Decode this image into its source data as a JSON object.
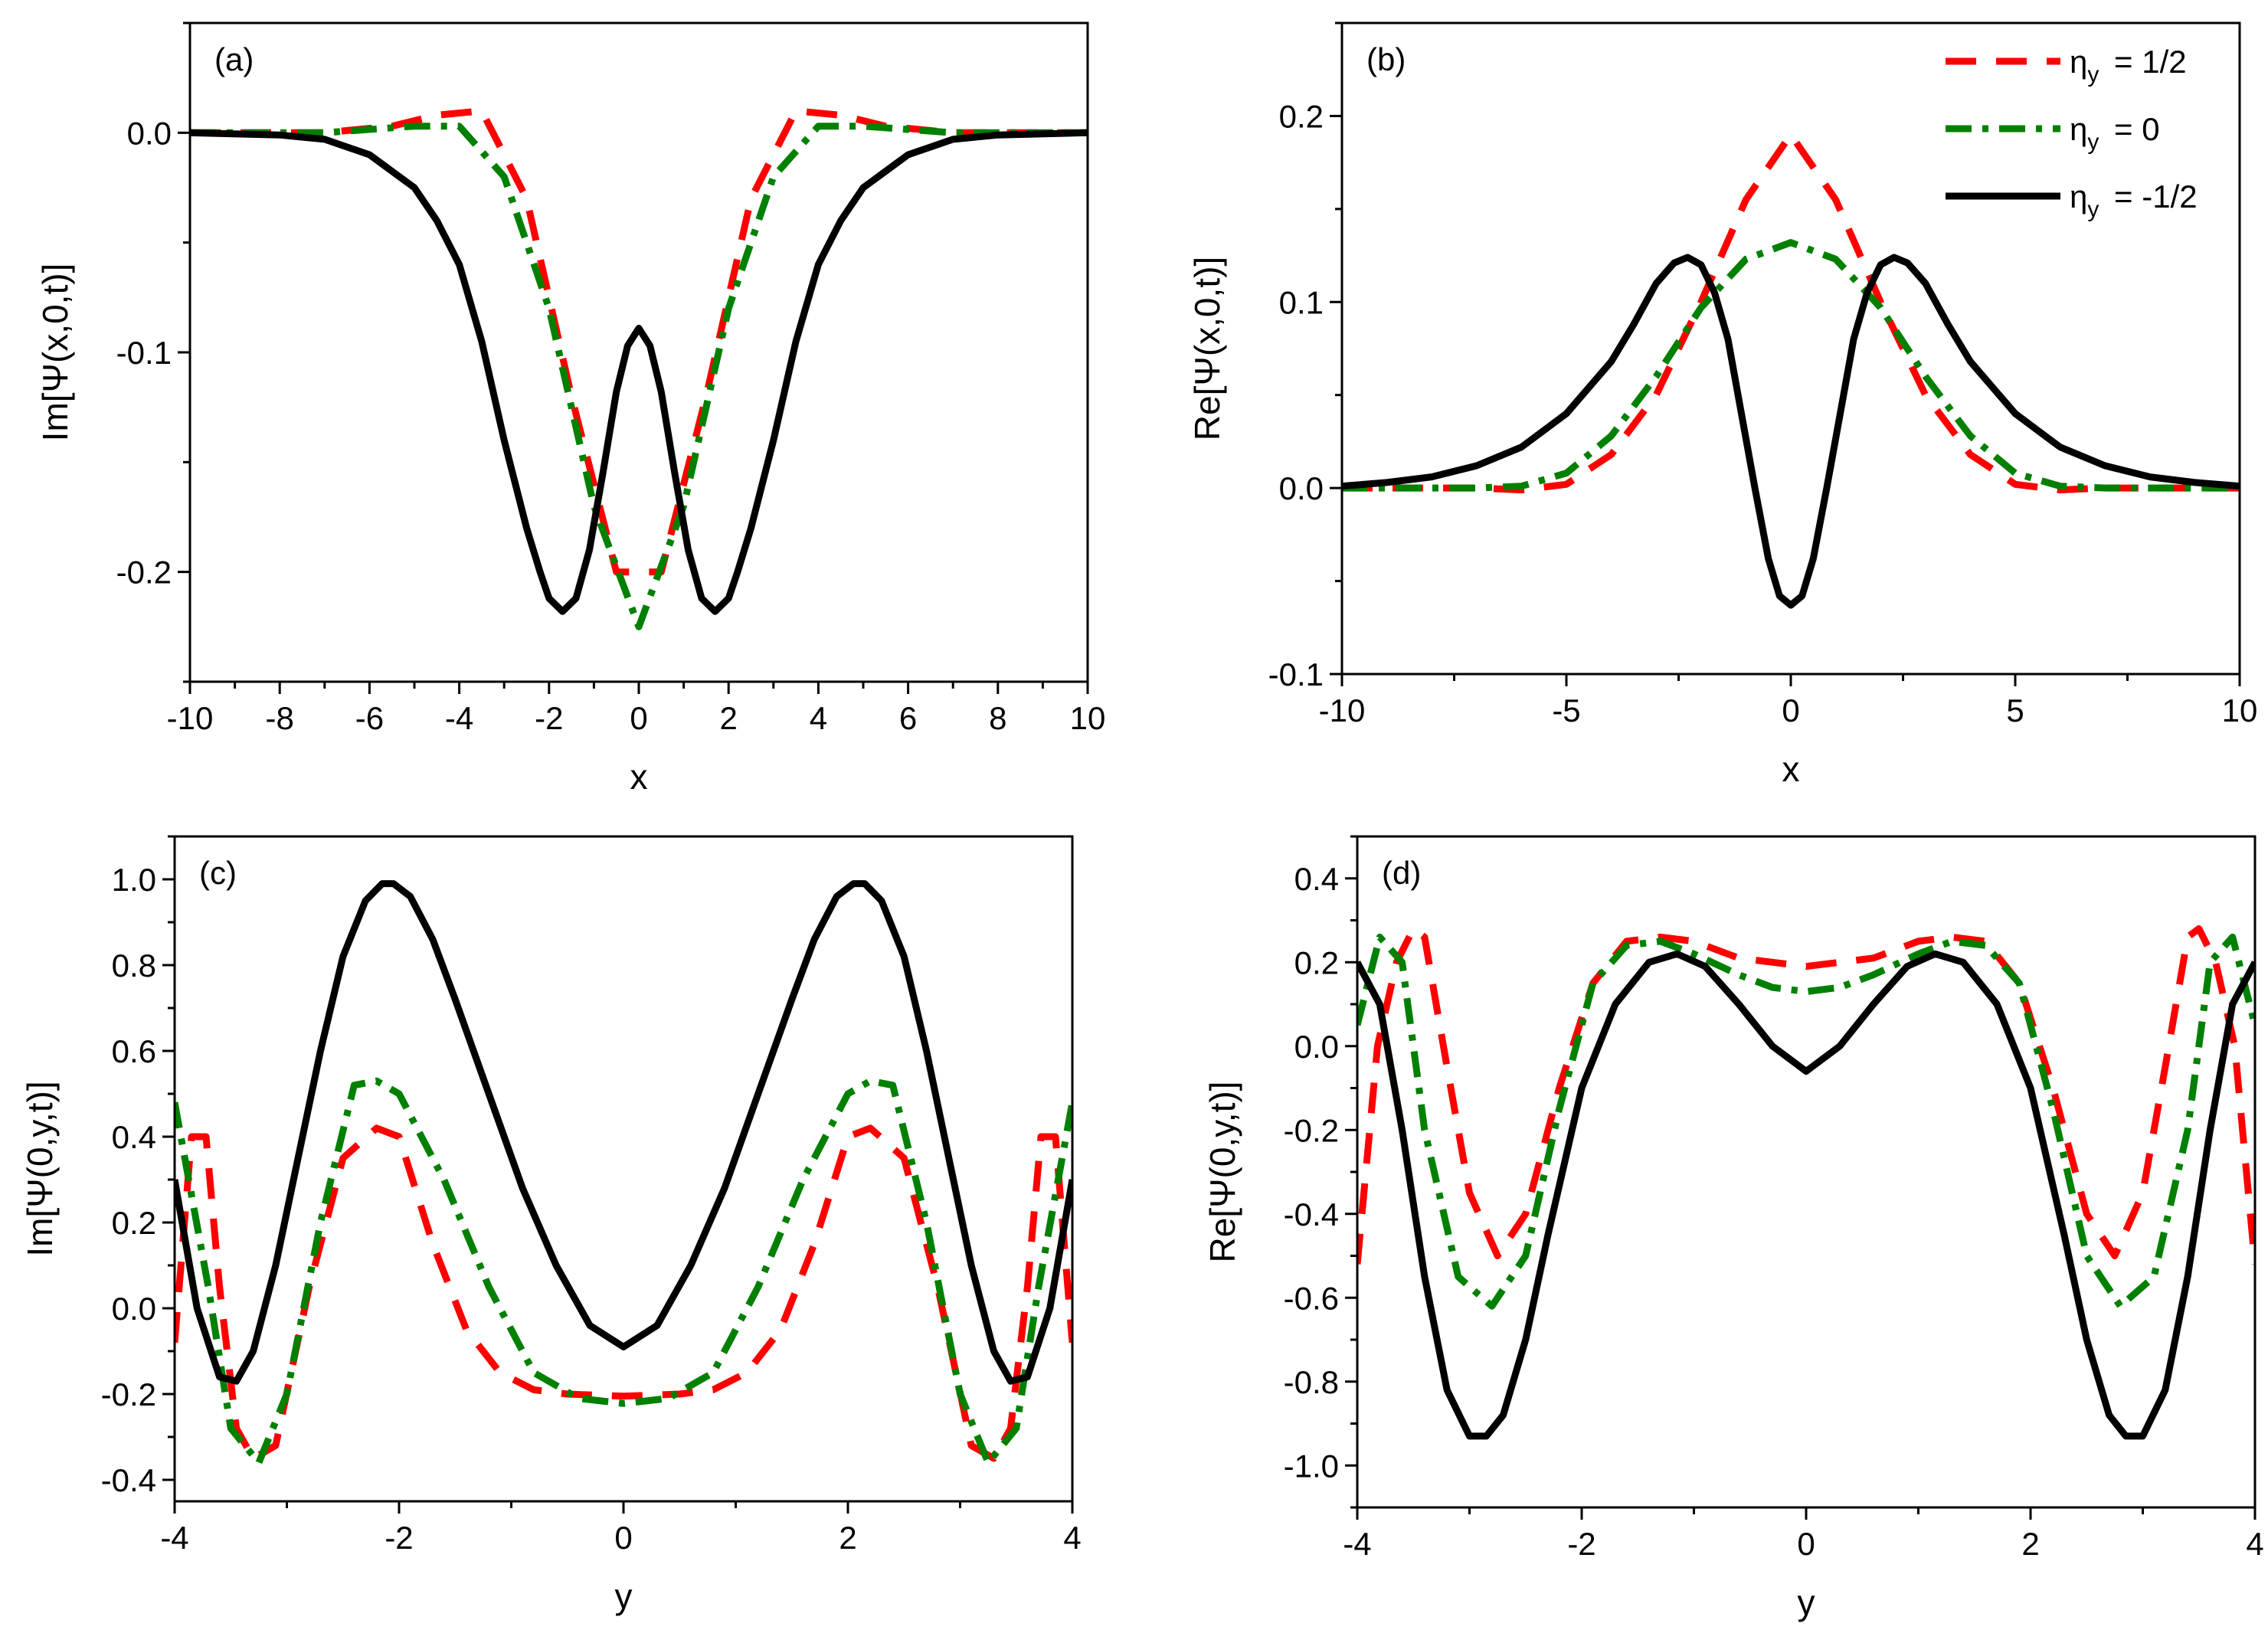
{
  "series_styles": [
    {
      "key": "a",
      "label": "ηy = 1/2",
      "name_html": "η",
      "sub": "y",
      "value": "= 1/2",
      "color": "#ff0000",
      "dash": "40 26"
    },
    {
      "key": "b",
      "label": "ηy = 0",
      "name_html": "η",
      "sub": "y",
      "value": "= 0",
      "color": "#008000",
      "dash": "34 14 8 14"
    },
    {
      "key": "c",
      "label": "ηy = -1/2",
      "name_html": "η",
      "sub": "y",
      "value": "= -1/2",
      "color": "#000000",
      "dash": ""
    }
  ],
  "chart_data": [
    {
      "type": "line",
      "panel": "(a)",
      "xlabel": "x",
      "ylabel": "Im[Ψ(x,0,t)]",
      "xlim": [
        -10,
        10
      ],
      "ylim": [
        -0.25,
        0.05
      ],
      "xticks": [
        -10,
        -8,
        -6,
        -4,
        -2,
        0,
        2,
        4,
        6,
        8,
        10
      ],
      "xtick_labels": [
        "-10",
        "-8",
        "-6",
        "-4",
        "-2",
        "0",
        "2",
        "4",
        "6",
        "8",
        "10"
      ],
      "yticks": [
        -0.2,
        -0.1,
        0.0
      ],
      "ytick_labels": [
        "-0.2",
        "-0.1",
        "0.0"
      ],
      "series": [
        {
          "name": "ηy = 1/2",
          "x": [
            -10,
            -7,
            -5.5,
            -4.5,
            -3.5,
            -2.5,
            -1.5,
            -0.5,
            0.5,
            1.5,
            2.5,
            3.5,
            4.5,
            5.5,
            7,
            10
          ],
          "y": [
            0,
            0,
            0.003,
            0.008,
            0.01,
            -0.03,
            -0.12,
            -0.2,
            -0.2,
            -0.12,
            -0.03,
            0.01,
            0.008,
            0.003,
            0,
            0
          ]
        },
        {
          "name": "ηy = 0",
          "x": [
            -10,
            -7,
            -5,
            -4,
            -3,
            -2,
            -1,
            0,
            1,
            2,
            3,
            4,
            5,
            7,
            10
          ],
          "y": [
            0,
            0,
            0.003,
            0.003,
            -0.02,
            -0.08,
            -0.17,
            -0.225,
            -0.17,
            -0.08,
            -0.02,
            0.003,
            0.003,
            0,
            0
          ]
        },
        {
          "name": "ηy = -1/2",
          "x": [
            -10,
            -8,
            -7,
            -6,
            -5,
            -4.5,
            -4,
            -3.5,
            -3,
            -2.5,
            -2.2,
            -2,
            -1.7,
            -1.4,
            -1.1,
            -0.8,
            -0.5,
            -0.25,
            0,
            0.25,
            0.5,
            0.8,
            1.1,
            1.4,
            1.7,
            2,
            2.2,
            2.5,
            3,
            3.5,
            4,
            4.5,
            5,
            6,
            7,
            8,
            10
          ],
          "y": [
            0,
            -0.001,
            -0.003,
            -0.01,
            -0.025,
            -0.04,
            -0.06,
            -0.095,
            -0.14,
            -0.18,
            -0.2,
            -0.212,
            -0.218,
            -0.212,
            -0.19,
            -0.155,
            -0.118,
            -0.097,
            -0.089,
            -0.097,
            -0.118,
            -0.155,
            -0.19,
            -0.212,
            -0.218,
            -0.212,
            -0.2,
            -0.18,
            -0.14,
            -0.095,
            -0.06,
            -0.04,
            -0.025,
            -0.01,
            -0.003,
            -0.001,
            0
          ]
        }
      ]
    },
    {
      "type": "line",
      "panel": "(b)",
      "xlabel": "x",
      "ylabel": "Re[Ψ(x,0,t)]",
      "xlim": [
        -10,
        10
      ],
      "ylim": [
        -0.1,
        0.25
      ],
      "xticks": [
        -10,
        -5,
        0,
        5,
        10
      ],
      "xtick_labels": [
        "-10",
        "-5",
        "0",
        "5",
        "10"
      ],
      "yticks": [
        -0.1,
        0.0,
        0.1,
        0.2
      ],
      "ytick_labels": [
        "-0.1",
        "0.0",
        "0.1",
        "0.2"
      ],
      "legend_position": "top-right",
      "series": [
        {
          "name": "ηy = 1/2",
          "x": [
            -10,
            -7,
            -6,
            -5,
            -4,
            -3,
            -2,
            -1,
            0,
            1,
            2,
            3,
            4,
            5,
            6,
            7,
            10
          ],
          "y": [
            0,
            0,
            -0.001,
            0.002,
            0.018,
            0.05,
            0.1,
            0.155,
            0.19,
            0.155,
            0.1,
            0.05,
            0.018,
            0.002,
            -0.001,
            0,
            0
          ]
        },
        {
          "name": "ηy = 0",
          "x": [
            -10,
            -7,
            -6,
            -5,
            -4,
            -3,
            -2,
            -1,
            0,
            1,
            2,
            3,
            4,
            5,
            6,
            7,
            10
          ],
          "y": [
            0,
            0,
            0.001,
            0.008,
            0.028,
            0.06,
            0.097,
            0.123,
            0.132,
            0.123,
            0.097,
            0.06,
            0.028,
            0.008,
            0.001,
            0,
            0
          ]
        },
        {
          "name": "ηy = -1/2",
          "x": [
            -10,
            -9,
            -8,
            -7,
            -6,
            -5,
            -4,
            -3.5,
            -3,
            -2.6,
            -2.3,
            -2,
            -1.7,
            -1.4,
            -1.1,
            -0.8,
            -0.5,
            -0.25,
            0,
            0.25,
            0.5,
            0.8,
            1.1,
            1.4,
            1.7,
            2,
            2.3,
            2.6,
            3,
            3.5,
            4,
            5,
            6,
            7,
            8,
            9,
            10
          ],
          "y": [
            0.001,
            0.003,
            0.006,
            0.012,
            0.022,
            0.04,
            0.068,
            0.088,
            0.11,
            0.121,
            0.124,
            0.12,
            0.105,
            0.08,
            0.04,
            0.0,
            -0.038,
            -0.058,
            -0.063,
            -0.058,
            -0.038,
            0.0,
            0.04,
            0.08,
            0.105,
            0.12,
            0.124,
            0.121,
            0.11,
            0.088,
            0.068,
            0.04,
            0.022,
            0.012,
            0.006,
            0.003,
            0.001
          ]
        }
      ]
    },
    {
      "type": "line",
      "panel": "(c)",
      "xlabel": "y",
      "ylabel": "Im[Ψ(0,y,t)]",
      "xlim": [
        -4,
        4
      ],
      "ylim": [
        -0.45,
        1.1
      ],
      "xticks": [
        -4,
        -2,
        0,
        2,
        4
      ],
      "xtick_labels": [
        "-4",
        "-2",
        "0",
        "2",
        "4"
      ],
      "yticks": [
        -0.4,
        -0.2,
        0.0,
        0.2,
        0.4,
        0.6,
        0.8,
        1.0
      ],
      "ytick_labels": [
        "-0.4",
        "-0.2",
        "0.0",
        "0.2",
        "0.4",
        "0.6",
        "0.8",
        "1.0"
      ],
      "series": [
        {
          "name": "ηy = 1/2",
          "x": [
            -4,
            -3.85,
            -3.72,
            -3.6,
            -3.45,
            -3.3,
            -3.1,
            -2.8,
            -2.5,
            -2.2,
            -2.0,
            -1.7,
            -1.4,
            -1.1,
            -0.8,
            -0.5,
            0,
            0.5,
            0.8,
            1.1,
            1.4,
            1.7,
            2.0,
            2.2,
            2.5,
            2.8,
            3.1,
            3.3,
            3.45,
            3.6,
            3.72,
            3.85,
            4
          ],
          "y": [
            -0.08,
            0.4,
            0.4,
            0.05,
            -0.28,
            -0.35,
            -0.32,
            0.05,
            0.35,
            0.42,
            0.4,
            0.15,
            -0.05,
            -0.15,
            -0.19,
            -0.2,
            -0.205,
            -0.2,
            -0.19,
            -0.15,
            -0.05,
            0.15,
            0.4,
            0.42,
            0.35,
            0.05,
            -0.32,
            -0.35,
            -0.28,
            0.05,
            0.4,
            0.4,
            -0.08
          ]
        },
        {
          "name": "ηy = 0",
          "x": [
            -4,
            -3.7,
            -3.5,
            -3.25,
            -3.0,
            -2.7,
            -2.4,
            -2.2,
            -2.0,
            -1.6,
            -1.2,
            -0.8,
            -0.4,
            0,
            0.4,
            0.8,
            1.2,
            1.6,
            2.0,
            2.2,
            2.4,
            2.7,
            3.0,
            3.25,
            3.5,
            3.7,
            4
          ],
          "y": [
            0.48,
            0.05,
            -0.28,
            -0.36,
            -0.2,
            0.2,
            0.52,
            0.53,
            0.5,
            0.3,
            0.05,
            -0.15,
            -0.21,
            -0.222,
            -0.21,
            -0.15,
            0.05,
            0.3,
            0.5,
            0.53,
            0.52,
            0.2,
            -0.2,
            -0.36,
            -0.28,
            0.05,
            0.48
          ]
        },
        {
          "name": "ηy = -1/2",
          "x": [
            -4,
            -3.8,
            -3.6,
            -3.45,
            -3.3,
            -3.1,
            -2.9,
            -2.7,
            -2.5,
            -2.3,
            -2.15,
            -2.05,
            -1.9,
            -1.7,
            -1.5,
            -1.2,
            -0.9,
            -0.6,
            -0.3,
            0,
            0.3,
            0.6,
            0.9,
            1.2,
            1.5,
            1.7,
            1.9,
            2.05,
            2.15,
            2.3,
            2.5,
            2.7,
            2.9,
            3.1,
            3.3,
            3.45,
            3.6,
            3.8,
            4
          ],
          "y": [
            0.3,
            0.0,
            -0.16,
            -0.17,
            -0.1,
            0.1,
            0.35,
            0.6,
            0.82,
            0.95,
            0.99,
            0.99,
            0.96,
            0.86,
            0.72,
            0.5,
            0.28,
            0.1,
            -0.04,
            -0.09,
            -0.04,
            0.1,
            0.28,
            0.5,
            0.72,
            0.86,
            0.96,
            0.99,
            0.99,
            0.95,
            0.82,
            0.6,
            0.35,
            0.1,
            -0.1,
            -0.17,
            -0.16,
            0.0,
            0.3
          ]
        }
      ]
    },
    {
      "type": "line",
      "panel": "(d)",
      "xlabel": "y",
      "ylabel": "Re[Ψ(0,y,t)]",
      "xlim": [
        -4,
        4
      ],
      "ylim": [
        -1.1,
        0.5
      ],
      "xticks": [
        -4,
        -2,
        0,
        2,
        4
      ],
      "xtick_labels": [
        "-4",
        "-2",
        "0",
        "2",
        "4"
      ],
      "yticks": [
        -1.0,
        -0.8,
        -0.6,
        -0.4,
        -0.2,
        0.0,
        0.2,
        0.4
      ],
      "ytick_labels": [
        "-1.0",
        "-0.8",
        "-0.6",
        "-0.4",
        "-0.2",
        "0.0",
        "0.2",
        "0.4"
      ],
      "series": [
        {
          "name": "ηy = 1/2",
          "x": [
            -4,
            -3.82,
            -3.65,
            -3.5,
            -3.4,
            -3.2,
            -3.0,
            -2.75,
            -2.5,
            -2.2,
            -1.9,
            -1.6,
            -1.3,
            -1.0,
            -0.6,
            -0.3,
            0,
            0.3,
            0.6,
            1.0,
            1.3,
            1.6,
            1.9,
            2.2,
            2.5,
            2.75,
            3.0,
            3.2,
            3.4,
            3.5,
            3.65,
            3.82,
            4
          ],
          "y": [
            -0.52,
            0.0,
            0.2,
            0.28,
            0.26,
            -0.05,
            -0.35,
            -0.5,
            -0.4,
            -0.1,
            0.15,
            0.25,
            0.26,
            0.25,
            0.21,
            0.2,
            0.19,
            0.2,
            0.21,
            0.25,
            0.26,
            0.25,
            0.15,
            -0.1,
            -0.4,
            -0.5,
            -0.35,
            -0.05,
            0.26,
            0.28,
            0.2,
            0.0,
            -0.52
          ]
        },
        {
          "name": "ηy = 0",
          "x": [
            -4,
            -3.8,
            -3.6,
            -3.4,
            -3.1,
            -2.8,
            -2.5,
            -2.2,
            -1.9,
            -1.6,
            -1.3,
            -1.0,
            -0.6,
            -0.3,
            0,
            0.3,
            0.6,
            1.0,
            1.3,
            1.6,
            1.9,
            2.2,
            2.5,
            2.8,
            3.1,
            3.4,
            3.6,
            3.8,
            4
          ],
          "y": [
            0.05,
            0.26,
            0.2,
            -0.2,
            -0.55,
            -0.62,
            -0.5,
            -0.15,
            0.15,
            0.24,
            0.25,
            0.22,
            0.17,
            0.14,
            0.13,
            0.14,
            0.17,
            0.22,
            0.25,
            0.24,
            0.15,
            -0.15,
            -0.5,
            -0.62,
            -0.55,
            -0.2,
            0.2,
            0.26,
            0.05
          ]
        },
        {
          "name": "ηy = -1/2",
          "x": [
            -4,
            -3.8,
            -3.6,
            -3.4,
            -3.2,
            -3.0,
            -2.85,
            -2.7,
            -2.5,
            -2.3,
            -2.0,
            -1.7,
            -1.4,
            -1.15,
            -0.9,
            -0.6,
            -0.3,
            0,
            0.3,
            0.6,
            0.9,
            1.15,
            1.4,
            1.7,
            2.0,
            2.3,
            2.5,
            2.7,
            2.85,
            3.0,
            3.2,
            3.4,
            3.6,
            3.8,
            4
          ],
          "y": [
            0.2,
            0.1,
            -0.2,
            -0.55,
            -0.82,
            -0.93,
            -0.93,
            -0.88,
            -0.7,
            -0.45,
            -0.1,
            0.1,
            0.2,
            0.22,
            0.19,
            0.1,
            0.0,
            -0.06,
            0.0,
            0.1,
            0.19,
            0.22,
            0.2,
            0.1,
            -0.1,
            -0.45,
            -0.7,
            -0.88,
            -0.93,
            -0.93,
            -0.82,
            -0.55,
            -0.2,
            0.1,
            0.2
          ]
        }
      ]
    }
  ]
}
